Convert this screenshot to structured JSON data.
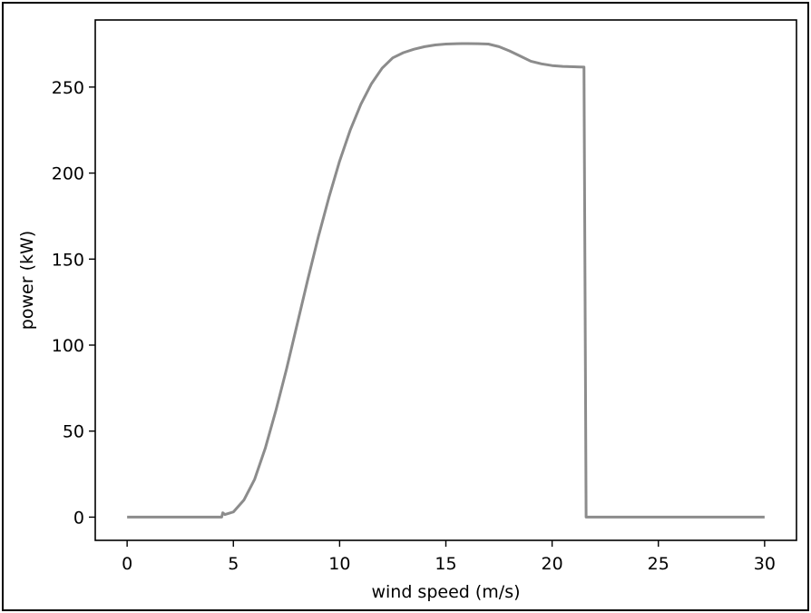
{
  "chart_data": {
    "type": "line",
    "title": "",
    "xlabel": "wind speed (m/s)",
    "ylabel": "power (kW)",
    "xlim": [
      -1.5,
      31.5
    ],
    "ylim": [
      -13.5,
      289
    ],
    "xticks": [
      0,
      5,
      10,
      15,
      20,
      25,
      30
    ],
    "yticks": [
      0,
      50,
      100,
      150,
      200,
      250
    ],
    "grid": false,
    "line_color": "#8c8c8c",
    "series": [
      {
        "x": [
          0,
          1,
          2,
          3,
          4,
          4.45,
          4.5,
          4.6,
          5,
          5.5,
          6,
          6.5,
          7,
          7.5,
          8,
          8.5,
          9,
          9.5,
          10,
          10.5,
          11,
          11.5,
          12,
          12.5,
          13,
          13.5,
          14,
          14.5,
          15,
          15.5,
          16,
          16.5,
          17,
          17.5,
          18,
          18.5,
          19,
          19.5,
          20,
          20.5,
          21,
          21.5,
          21.6,
          21.7,
          22,
          25,
          30
        ],
        "y": [
          0,
          0,
          0,
          0,
          0,
          0,
          2.5,
          1.5,
          3,
          10,
          22,
          40,
          62,
          86,
          112,
          138,
          163,
          186,
          207,
          225,
          240,
          252,
          261,
          267,
          270,
          272,
          273.5,
          274.5,
          275,
          275.2,
          275.3,
          275.2,
          275,
          273.5,
          271,
          268,
          265,
          263.5,
          262.5,
          262,
          261.8,
          261.6,
          0,
          0,
          0,
          0,
          0
        ]
      }
    ]
  }
}
